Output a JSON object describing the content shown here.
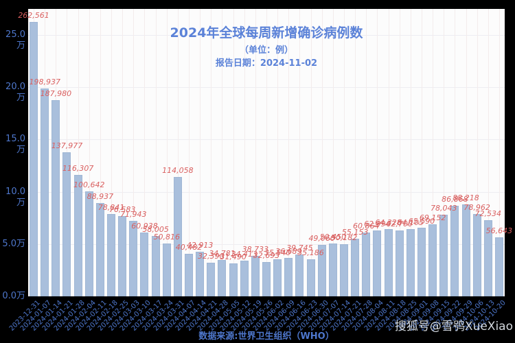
{
  "header": {
    "title": "2024年全球每周新增确诊病例数",
    "subtitle": "（单位：例）",
    "report_date": "报告日期：2024-11-02"
  },
  "footer": {
    "source": "数据来源:世界卫生组织（WHO）",
    "watermark": "搜狐号@雪鸮XueXiao"
  },
  "colors": {
    "page_background": "#000000",
    "plot_background": "#fcfcfc",
    "bar_fill": "#a9bfdc",
    "bar_value_label": "#d95f5f",
    "axis_text": "#4e77cc",
    "title_text": "#5b82d8",
    "watermark_text": "#d4d9de"
  },
  "chart_data": {
    "type": "bar",
    "title": "2024年全球每周新增确诊病例数",
    "subtitle": "（单位：例）",
    "annotation": "报告日期：2024-11-02",
    "xlabel": "",
    "ylabel": "",
    "grid": true,
    "legend": false,
    "ylim": [
      0,
      275000
    ],
    "y_tick_step": 50000,
    "y_ticks": [
      "0.0万",
      "5.0万",
      "10.0万",
      "15.0万",
      "20.0万",
      "25.0万"
    ],
    "categories": [
      "2023-12-31",
      "2024-01-07",
      "2024-01-14",
      "2024-01-21",
      "2024-01-28",
      "2024-02-04",
      "2024-02-11",
      "2024-02-18",
      "2024-02-25",
      "2024-03-03",
      "2024-03-10",
      "2024-03-17",
      "2024-03-24",
      "2024-03-31",
      "2024-04-07",
      "2024-04-14",
      "2024-04-21",
      "2024-04-28",
      "2024-05-05",
      "2024-05-12",
      "2024-05-19",
      "2024-05-26",
      "2024-06-02",
      "2024-06-09",
      "2024-06-16",
      "2024-06-23",
      "2024-06-30",
      "2024-07-07",
      "2024-07-14",
      "2024-07-21",
      "2024-07-28",
      "2024-08-04",
      "2024-08-11",
      "2024-08-18",
      "2024-08-25",
      "2024-09-01",
      "2024-09-08",
      "2024-09-15",
      "2024-09-22",
      "2024-09-29",
      "2024-10-06",
      "2024-10-13",
      "2024-10-20"
    ],
    "values": [
      262561,
      198937,
      187980,
      137977,
      116307,
      100642,
      88937,
      78841,
      76583,
      71943,
      60938,
      58005,
      50816,
      114058,
      40482,
      42913,
      32390,
      34781,
      31490,
      34413,
      38733,
      32693,
      35540,
      36689,
      39745,
      35186,
      49060,
      50450,
      50182,
      55153,
      60864,
      62994,
      64328,
      62700,
      64105,
      65590,
      69152,
      78043,
      86868,
      88218,
      78962,
      72534,
      56643
    ]
  }
}
